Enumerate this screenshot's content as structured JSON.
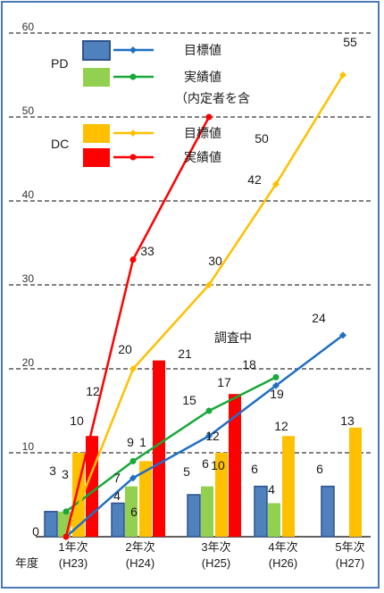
{
  "chart_data": {
    "type": "bar",
    "ylim": [
      0,
      60
    ],
    "yticks": [
      10,
      20,
      30,
      40,
      50,
      60
    ],
    "xlabel": "年度",
    "categories": [
      {
        "line1": "1年次",
        "line2": "(H23)"
      },
      {
        "line1": "2年次",
        "line2": "(H24)"
      },
      {
        "line1": "3年次",
        "line2": "(H25)"
      },
      {
        "line1": "4年次",
        "line2": "(H26)"
      },
      {
        "line1": "5年次",
        "line2": "(H27)"
      }
    ],
    "bars": [
      {
        "group": "PD",
        "name": "目標値",
        "color": "#4f81bd",
        "values": [
          3,
          4,
          5,
          6,
          6
        ]
      },
      {
        "group": "PD",
        "name": "実績値",
        "color": "#92d050",
        "values": [
          3,
          6,
          6,
          4,
          null
        ]
      },
      {
        "group": "DC",
        "name": "目標値",
        "color": "#ffc000",
        "values": [
          10,
          9,
          10,
          12,
          13
        ]
      },
      {
        "group": "DC",
        "name": "実績値",
        "color": "#ff0000",
        "values": [
          12,
          21,
          17,
          null,
          null
        ]
      }
    ],
    "lines": [
      {
        "group": "PD",
        "name": "目標値",
        "color": "#1f6fc5",
        "values": [
          0,
          7,
          12,
          18,
          24
        ]
      },
      {
        "group": "PD",
        "name": "実績値",
        "color": "#18a838",
        "values": [
          3,
          9,
          15,
          19,
          null
        ]
      },
      {
        "group": "DC",
        "name": "目標値",
        "color": "#ffc000",
        "values": [
          0,
          20,
          30,
          42,
          55
        ]
      },
      {
        "group": "DC",
        "name": "実績値",
        "color": "#ff0000",
        "values": [
          0,
          33,
          50,
          null,
          null
        ]
      }
    ],
    "zero_label": "0",
    "bar_labels": [
      "3",
      "3",
      "10",
      "4",
      "6",
      "9",
      "5",
      "6",
      "10",
      "6",
      "4",
      "12",
      "6",
      "13"
    ],
    "line_labels": [
      "12",
      "7",
      "1",
      "20",
      "33",
      "21",
      "15",
      "12",
      "30",
      "17",
      "18",
      "19",
      "42",
      "24",
      "55",
      "50"
    ],
    "annotations": {
      "survey": "調査中"
    }
  },
  "legend": {
    "pd_label": "PD",
    "pd_target": "目標値",
    "pd_actual": "実績値",
    "pd_note": "（内定者を含",
    "dc_label": "DC",
    "dc_target": "目標値",
    "dc_actual": "実績値"
  }
}
